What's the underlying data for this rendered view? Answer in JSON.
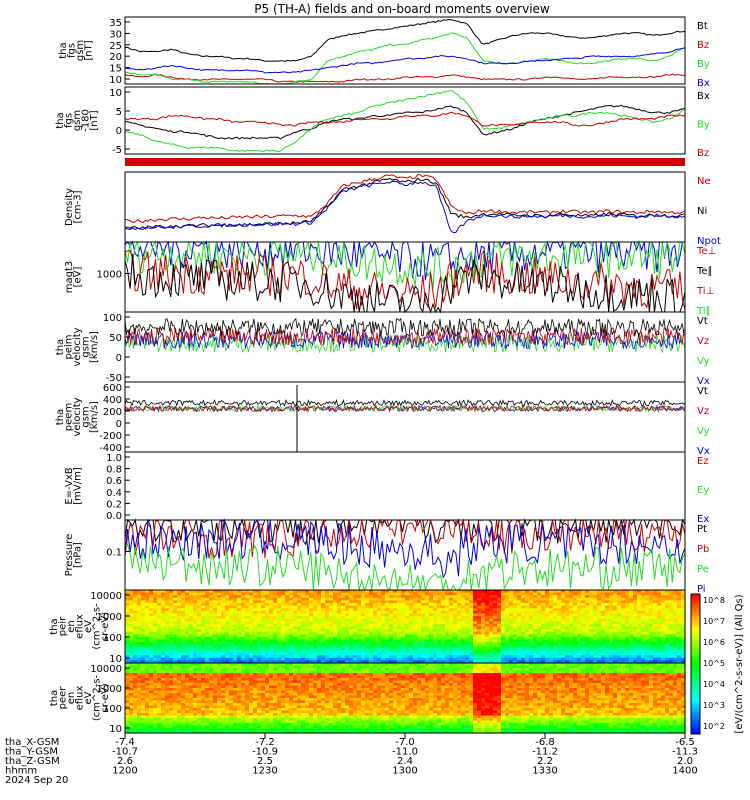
{
  "title": "P5 (TH-A) fields and on-board moments overview",
  "colors": {
    "black": "#000000",
    "red": "#cc0000",
    "green": "#22dd22",
    "blue": "#0000dd"
  },
  "time_axis": {
    "rows": [
      {
        "label": "tha_X-GSM",
        "values": [
          "-7.4",
          "-7.2",
          "-7.0",
          "-6.8",
          "-6.5"
        ]
      },
      {
        "label": "tha_Y-GSM",
        "values": [
          "-10.7",
          "-10.9",
          "-11.0",
          "-11.2",
          "-11.3"
        ]
      },
      {
        "label": "tha_Z-GSM",
        "values": [
          "2.6",
          "2.5",
          "2.4",
          "2.2",
          "2.0"
        ]
      },
      {
        "label": "hhmm",
        "values": [
          "1200",
          "1230",
          "1300",
          "1330",
          "1400"
        ]
      },
      {
        "label": "2024 Sep 20",
        "values": []
      }
    ]
  },
  "colorbar": {
    "ticks": [
      "10^8",
      "10^7",
      "10^6",
      "10^5",
      "10^4",
      "10^3",
      "10^2"
    ],
    "label": "[eV/(cm^2-s-sr-eV)] (All Qs)"
  },
  "chart_data": [
    {
      "type": "line",
      "id": "fgs_gsm",
      "ylabel": [
        "tha",
        "fgs",
        "gsm",
        "[nT]"
      ],
      "ylim": [
        8,
        37
      ],
      "yticks": [
        "35",
        "30",
        "25",
        "20",
        "15",
        "10"
      ],
      "legend": [
        {
          "name": "Bt",
          "color": "black"
        },
        {
          "name": "Bz",
          "color": "red"
        },
        {
          "name": "By",
          "color": "green"
        },
        {
          "name": "Bx",
          "color": "blue"
        }
      ],
      "series": [
        {
          "name": "Bt",
          "color": "black",
          "values": [
            24,
            22,
            22,
            23,
            21,
            20,
            20,
            19,
            19,
            18,
            18,
            18,
            20,
            27,
            29,
            30,
            31,
            32,
            33,
            34,
            35,
            36,
            34,
            25,
            27,
            29,
            30,
            30,
            29,
            28,
            28,
            29,
            30,
            30,
            29,
            30,
            31
          ]
        },
        {
          "name": "Bz",
          "color": "red",
          "values": [
            12,
            11,
            12,
            11,
            10,
            10,
            10,
            10,
            10,
            10,
            9,
            9,
            9,
            9,
            9,
            10,
            10,
            10,
            11,
            11,
            11,
            12,
            11,
            10,
            10,
            10,
            10,
            11,
            11,
            10,
            10,
            11,
            11,
            11,
            11,
            12,
            12
          ]
        },
        {
          "name": "By",
          "color": "green",
          "values": [
            13,
            12,
            12,
            10,
            10,
            9,
            9,
            9,
            9,
            8,
            8,
            9,
            10,
            18,
            20,
            22,
            23,
            25,
            25,
            27,
            28,
            30,
            28,
            18,
            17,
            17,
            18,
            19,
            18,
            17,
            17,
            18,
            19,
            19,
            18,
            20,
            24
          ]
        },
        {
          "name": "Bx",
          "color": "blue",
          "values": [
            15,
            14,
            15,
            16,
            15,
            14,
            14,
            14,
            14,
            13,
            13,
            13,
            14,
            15,
            16,
            17,
            17,
            18,
            19,
            19,
            20,
            20,
            19,
            17,
            17,
            17,
            18,
            18,
            19,
            19,
            20,
            20,
            20,
            20,
            21,
            22,
            24
          ]
        }
      ]
    },
    {
      "type": "line",
      "id": "fgs_gse",
      "ylabel": [
        "tha",
        "fgs",
        "gsm",
        "-180",
        "[nT]"
      ],
      "ylim": [
        -10,
        11
      ],
      "yticks": [
        "10",
        "5",
        "0",
        "-5"
      ],
      "legend": [
        {
          "name": "Bx",
          "color": "black"
        },
        {
          "name": "By",
          "color": "green"
        },
        {
          "name": "Bz",
          "color": "red"
        }
      ],
      "series": [
        {
          "name": "Bx",
          "color": "black",
          "values": [
            0,
            -1,
            -2,
            -3,
            -3,
            -4,
            -5,
            -5,
            -5,
            -5,
            -5,
            -3,
            -2,
            0,
            1,
            1,
            2,
            2,
            3,
            3,
            4,
            5,
            3,
            -4,
            -3,
            -2,
            0,
            1,
            2,
            3,
            4,
            5,
            5,
            4,
            3,
            3,
            4
          ]
        },
        {
          "name": "By",
          "color": "green",
          "values": [
            -3,
            -4,
            -6,
            -7,
            -8,
            -8,
            -8,
            -9,
            -9,
            -9,
            -9,
            -6,
            -2,
            1,
            2,
            3,
            5,
            6,
            7,
            8,
            9,
            10,
            6,
            -2,
            -2,
            -1,
            0,
            1,
            2,
            2,
            3,
            3,
            2,
            1,
            0,
            1,
            4
          ]
        },
        {
          "name": "Bz",
          "color": "red",
          "values": [
            1,
            1,
            1,
            2,
            2,
            1,
            1,
            0,
            0,
            0,
            -1,
            -1,
            0,
            0,
            0,
            1,
            1,
            1,
            2,
            2,
            2,
            3,
            2,
            -1,
            -1,
            -1,
            0,
            0,
            0,
            -1,
            -1,
            0,
            1,
            1,
            1,
            2,
            2
          ]
        }
      ]
    },
    {
      "type": "line",
      "id": "density",
      "ylabel": [
        "Density",
        "[cm-3]"
      ],
      "legend": [
        {
          "name": "Ne",
          "color": "red"
        },
        {
          "name": "Ni",
          "color": "black"
        },
        {
          "name": "Npot",
          "color": "blue"
        }
      ],
      "series": [
        {
          "name": "Ne",
          "color": "red",
          "values": [
            0.3,
            0.3,
            0.32,
            0.33,
            0.33,
            0.35,
            0.34,
            0.35,
            0.36,
            0.36,
            0.37,
            0.38,
            0.36,
            0.55,
            0.8,
            0.85,
            0.9,
            0.95,
            0.9,
            0.95,
            0.9,
            0.5,
            0.4,
            0.45,
            0.44,
            0.42,
            0.43,
            0.42,
            0.44,
            0.43,
            0.42,
            0.44,
            0.43,
            0.42,
            0.44,
            0.42,
            0.43
          ]
        },
        {
          "name": "Ni",
          "color": "black",
          "values": [
            0.2,
            0.2,
            0.22,
            0.22,
            0.23,
            0.24,
            0.24,
            0.25,
            0.25,
            0.26,
            0.26,
            0.27,
            0.3,
            0.5,
            0.75,
            0.8,
            0.85,
            0.9,
            0.85,
            0.9,
            0.85,
            0.4,
            0.35,
            0.4,
            0.4,
            0.38,
            0.38,
            0.37,
            0.4,
            0.38,
            0.37,
            0.4,
            0.39,
            0.37,
            0.39,
            0.38,
            0.38
          ]
        },
        {
          "name": "Npot",
          "color": "blue",
          "values": [
            0.2,
            0.2,
            0.21,
            0.22,
            0.22,
            0.23,
            0.24,
            0.24,
            0.25,
            0.25,
            0.26,
            0.26,
            0.28,
            0.48,
            0.72,
            0.78,
            0.82,
            0.86,
            0.82,
            0.86,
            0.8,
            0.1,
            0.3,
            0.38,
            0.38,
            0.36,
            0.37,
            0.36,
            0.38,
            0.37,
            0.36,
            0.38,
            0.37,
            0.36,
            0.38,
            0.37,
            0.37
          ]
        }
      ]
    },
    {
      "type": "line",
      "id": "temperature",
      "ylabel": [
        "magt3",
        "[eV]"
      ],
      "yticks": [
        "1000"
      ],
      "legend": [
        {
          "name": "Te⊥",
          "color": "red"
        },
        {
          "name": "Te∥",
          "color": "black"
        },
        {
          "name": "Ti⊥",
          "color": "red"
        },
        {
          "name": "Ti∥",
          "color": "green"
        }
      ],
      "series": [
        {
          "name": "blue",
          "color": "blue",
          "values": [
            0.92,
            0.93,
            0.93,
            0.92,
            0.92,
            0.92,
            0.91,
            0.91,
            0.91,
            0.9,
            0.9,
            0.9,
            0.9,
            0.88,
            0.84,
            0.82,
            0.8,
            0.78,
            0.76,
            0.74,
            0.72,
            0.72,
            0.8,
            0.82,
            0.84,
            0.84,
            0.85,
            0.86,
            0.86,
            0.86,
            0.85,
            0.86,
            0.86,
            0.85,
            0.85,
            0.86,
            0.86
          ]
        },
        {
          "name": "green",
          "color": "green",
          "values": [
            0.85,
            0.85,
            0.86,
            0.85,
            0.84,
            0.84,
            0.83,
            0.83,
            0.83,
            0.82,
            0.82,
            0.82,
            0.82,
            0.8,
            0.74,
            0.72,
            0.7,
            0.68,
            0.66,
            0.64,
            0.62,
            0.62,
            0.72,
            0.75,
            0.77,
            0.78,
            0.78,
            0.79,
            0.79,
            0.79,
            0.78,
            0.79,
            0.79,
            0.78,
            0.78,
            0.78,
            0.8
          ]
        },
        {
          "name": "red",
          "color": "red",
          "values": [
            0.6,
            0.58,
            0.56,
            0.55,
            0.55,
            0.54,
            0.54,
            0.53,
            0.53,
            0.53,
            0.52,
            0.52,
            0.5,
            0.42,
            0.36,
            0.33,
            0.3,
            0.28,
            0.27,
            0.26,
            0.3,
            0.45,
            0.55,
            0.58,
            0.55,
            0.52,
            0.5,
            0.48,
            0.46,
            0.44,
            0.42,
            0.4,
            0.38,
            0.36,
            0.34,
            0.32,
            0.3
          ]
        },
        {
          "name": "black",
          "color": "black",
          "values": [
            0.56,
            0.53,
            0.5,
            0.49,
            0.48,
            0.47,
            0.46,
            0.45,
            0.44,
            0.44,
            0.43,
            0.43,
            0.4,
            0.3,
            0.24,
            0.2,
            0.17,
            0.14,
            0.12,
            0.12,
            0.18,
            0.38,
            0.48,
            0.5,
            0.46,
            0.42,
            0.4,
            0.38,
            0.36,
            0.34,
            0.32,
            0.3,
            0.28,
            0.26,
            0.24,
            0.22,
            0.2
          ]
        }
      ]
    },
    {
      "type": "line",
      "id": "peim_velocity",
      "ylabel": [
        "tha",
        "peim",
        "velocity",
        "gsm",
        "[km/s]"
      ],
      "ylim": [
        -70,
        120
      ],
      "yticks": [
        "100",
        "50",
        "0",
        "-50"
      ],
      "legend": [
        {
          "name": "Vt",
          "color": "black"
        },
        {
          "name": "Vz",
          "color": "red"
        },
        {
          "name": "Vy",
          "color": "green"
        },
        {
          "name": "Vx",
          "color": "blue"
        }
      ]
    },
    {
      "type": "line",
      "id": "peem_velocity",
      "ylabel": [
        "tha",
        "peem",
        "velocity",
        "gsm",
        "[km/s]"
      ],
      "ylim": [
        -480,
        750
      ],
      "yticks": [
        "600",
        "400",
        "200",
        "0",
        "-200",
        "-400"
      ],
      "legend": [
        {
          "name": "Vt",
          "color": "black"
        },
        {
          "name": "Vz",
          "color": "red"
        },
        {
          "name": "Vy",
          "color": "green"
        },
        {
          "name": "Vx",
          "color": "blue"
        }
      ]
    },
    {
      "type": "line",
      "id": "e_field",
      "ylabel": [
        "E=-VxB",
        "[mV/m]"
      ],
      "yticks": [
        "1.0",
        "0.8",
        "0.6",
        "0.4",
        "0.2",
        "0.0"
      ],
      "legend": [
        {
          "name": "Ez",
          "color": "red"
        },
        {
          "name": "Ey",
          "color": "green"
        },
        {
          "name": "Ex",
          "color": "blue"
        }
      ],
      "series": []
    },
    {
      "type": "line",
      "id": "pressure",
      "ylabel": [
        "Pressure",
        "[nPa]"
      ],
      "yticks": [
        "0.1"
      ],
      "legend": [
        {
          "name": "Pt",
          "color": "black"
        },
        {
          "name": "Pb",
          "color": "red"
        },
        {
          "name": "Pe",
          "color": "green"
        },
        {
          "name": "Pi",
          "color": "blue"
        }
      ],
      "series": [
        {
          "name": "Pt",
          "color": "black",
          "values": [
            0.95,
            0.95,
            0.95,
            0.95,
            0.95,
            0.95,
            0.95,
            0.95,
            0.95,
            0.95,
            0.95,
            0.95,
            0.95,
            0.96,
            0.97,
            0.97,
            0.97,
            0.97,
            0.97,
            0.98,
            0.98,
            0.99,
            0.97,
            0.96,
            0.96,
            0.96,
            0.96,
            0.96,
            0.96,
            0.96,
            0.96,
            0.96,
            0.96,
            0.96,
            0.96,
            0.96,
            0.97
          ]
        },
        {
          "name": "Pb",
          "color": "red",
          "values": [
            0.78,
            0.77,
            0.76,
            0.77,
            0.76,
            0.75,
            0.75,
            0.75,
            0.74,
            0.74,
            0.74,
            0.74,
            0.76,
            0.82,
            0.85,
            0.87,
            0.89,
            0.9,
            0.92,
            0.93,
            0.95,
            0.97,
            0.94,
            0.8,
            0.8,
            0.81,
            0.82,
            0.82,
            0.82,
            0.81,
            0.81,
            0.82,
            0.83,
            0.83,
            0.83,
            0.84,
            0.87
          ]
        },
        {
          "name": "Pi",
          "color": "blue",
          "values": [
            0.7,
            0.7,
            0.7,
            0.71,
            0.71,
            0.71,
            0.71,
            0.71,
            0.72,
            0.72,
            0.72,
            0.72,
            0.72,
            0.68,
            0.64,
            0.62,
            0.6,
            0.58,
            0.56,
            0.55,
            0.5,
            0.4,
            0.62,
            0.68,
            0.68,
            0.68,
            0.68,
            0.67,
            0.67,
            0.66,
            0.66,
            0.66,
            0.66,
            0.65,
            0.65,
            0.65,
            0.66
          ]
        },
        {
          "name": "Pe",
          "color": "green",
          "values": [
            0.42,
            0.41,
            0.4,
            0.38,
            0.37,
            0.37,
            0.36,
            0.35,
            0.35,
            0.34,
            0.34,
            0.33,
            0.3,
            0.24,
            0.2,
            0.18,
            0.16,
            0.14,
            0.12,
            0.1,
            0.06,
            0.04,
            0.2,
            0.26,
            0.28,
            0.3,
            0.31,
            0.31,
            0.31,
            0.31,
            0.31,
            0.31,
            0.31,
            0.3,
            0.31,
            0.32,
            0.35
          ]
        }
      ]
    },
    {
      "type": "heatmap",
      "id": "peir_eflux",
      "ylabel": [
        "tha",
        "peir",
        "en",
        "eflux",
        "eV",
        "(cm^2-s-",
        "sr-eV)"
      ],
      "yticks": [
        "10000",
        "1000",
        "100",
        "10"
      ]
    },
    {
      "type": "heatmap",
      "id": "peer_eflux",
      "ylabel": [
        "tha",
        "peer",
        "en",
        "eflux",
        "eV",
        "(cm^2-s-",
        "sr-eV)"
      ],
      "yticks": [
        "10000",
        "1000",
        "100",
        "10"
      ]
    }
  ]
}
